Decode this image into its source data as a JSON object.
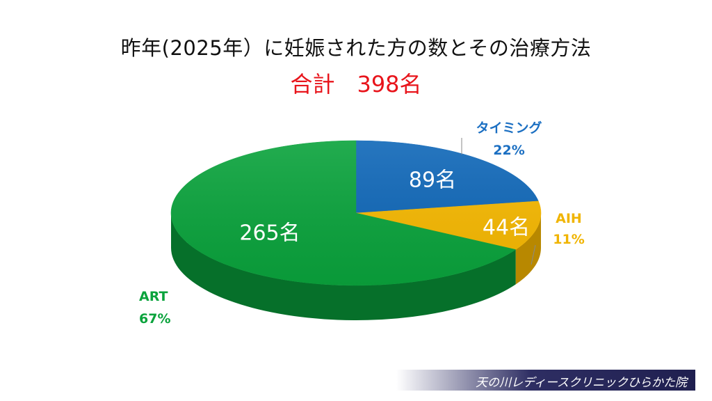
{
  "title": "昨年(2025年）に妊娠された方の数とその治療方法",
  "total": "合計　398名",
  "footer": "天の川レディースクリニックひらかた院",
  "chart_data": {
    "type": "pie",
    "title": "昨年(2025年）に妊娠された方の数とその治療方法",
    "slices": [
      {
        "name": "タイミング",
        "value": 89,
        "percent": "22%",
        "value_label": "89名",
        "color": "#0f67b8",
        "side": "#0a4a86"
      },
      {
        "name": "AIH",
        "value": 44,
        "percent": "11%",
        "value_label": "44名",
        "color": "#f6b800",
        "side": "#b88800"
      },
      {
        "name": "ART",
        "value": 265,
        "percent": "67%",
        "value_label": "265名",
        "color": "#0aa33c",
        "side": "#06702a"
      }
    ],
    "legend_colors": {
      "タイミング": "#1b6fc2",
      "AIH": "#f0b400",
      "ART": "#0aa33c"
    }
  }
}
